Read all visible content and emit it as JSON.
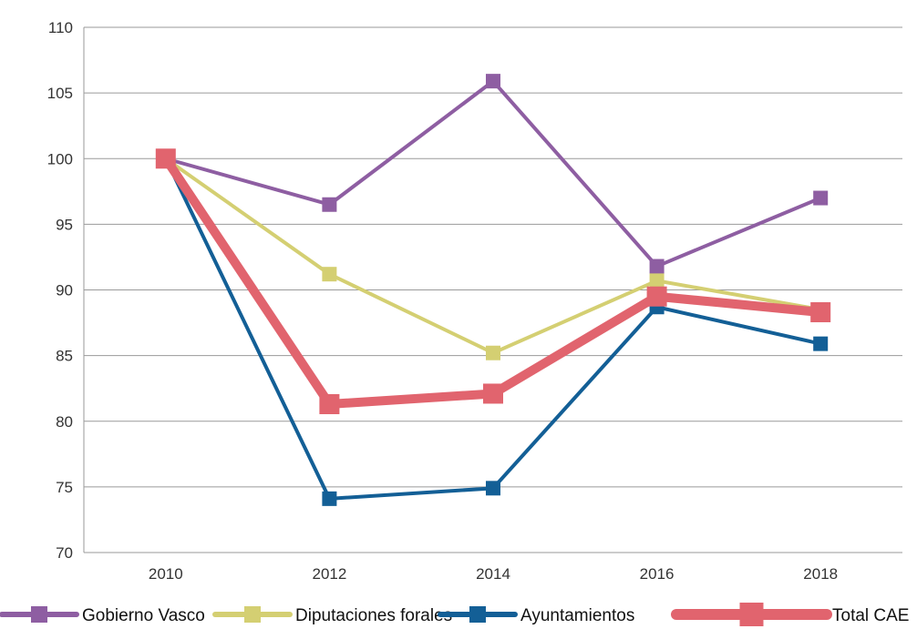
{
  "chart_data": {
    "type": "line",
    "title": "",
    "xlabel": "",
    "ylabel": "",
    "categories": [
      "2010",
      "2012",
      "2014",
      "2016",
      "2018"
    ],
    "ylim": [
      70,
      110
    ],
    "yticks": [
      70,
      75,
      80,
      85,
      90,
      95,
      100,
      105,
      110
    ],
    "grid": "horizontal",
    "legend_position": "bottom",
    "series": [
      {
        "name": "Gobierno Vasco",
        "color": "#8e5ea2",
        "values": [
          100,
          96.5,
          105.9,
          91.8,
          97.0
        ]
      },
      {
        "name": "Diputaciones forales",
        "color": "#d4cf72",
        "values": [
          100,
          91.2,
          85.2,
          90.7,
          88.5
        ]
      },
      {
        "name": "Ayuntamientos",
        "color": "#135f96",
        "values": [
          100,
          74.1,
          74.9,
          88.7,
          85.9
        ]
      },
      {
        "name": "Total CAE",
        "color": "#e1646e",
        "values": [
          100,
          81.3,
          82.1,
          89.5,
          88.3
        ]
      }
    ]
  }
}
